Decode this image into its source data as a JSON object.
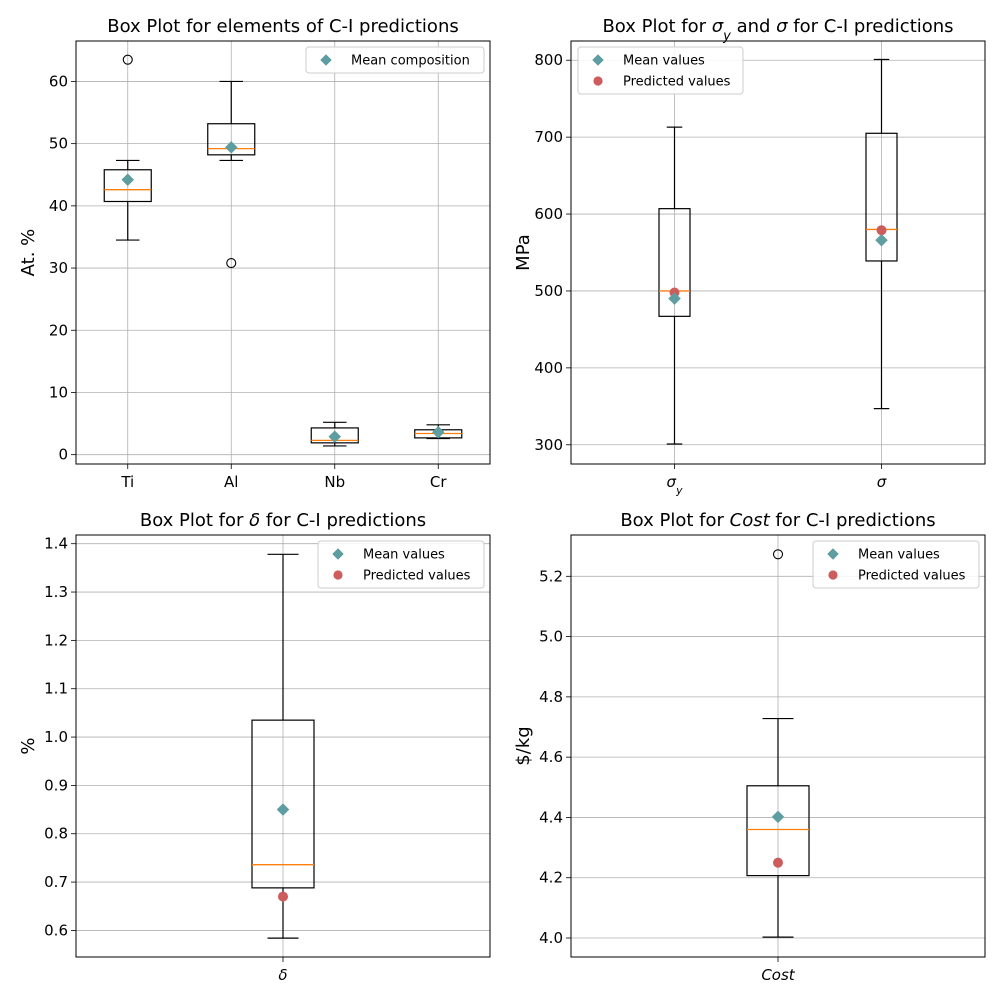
{
  "figure": {
    "background": "#ffffff"
  },
  "colors": {
    "mean_marker": "#5F9EA0",
    "predicted_marker": "#CD5C5C",
    "median_line": "#FF7F0E",
    "box_edge": "#000000",
    "grid": "#b0b0b0"
  },
  "chart_data": [
    {
      "id": "composition",
      "type": "box",
      "title": "Box Plot for elements of C-I predictions",
      "title_parts": [
        {
          "text": "Box Plot for elements of C-I predictions"
        }
      ],
      "ylabel": "At. %",
      "ylim": [
        -1.5,
        66.5
      ],
      "yticks": [
        0,
        10,
        20,
        30,
        40,
        50,
        60
      ],
      "ytick_labels": [
        "0",
        "10",
        "20",
        "30",
        "40",
        "50",
        "60"
      ],
      "grid": true,
      "categories": [
        "Ti",
        "Al",
        "Nb",
        "Cr"
      ],
      "boxes": [
        {
          "label": "Ti",
          "whisker_low": 34.5,
          "q1": 40.7,
          "median": 42.6,
          "q3": 45.8,
          "whisker_high": 47.3,
          "outliers": [
            63.5
          ],
          "mean": 44.2
        },
        {
          "label": "Al",
          "whisker_low": 47.3,
          "q1": 48.2,
          "median": 49.2,
          "q3": 53.2,
          "whisker_high": 60.0,
          "outliers": [
            30.8
          ],
          "mean": 49.4
        },
        {
          "label": "Nb",
          "whisker_low": 1.4,
          "q1": 1.9,
          "median": 2.3,
          "q3": 4.3,
          "whisker_high": 5.2,
          "outliers": [],
          "mean": 2.9
        },
        {
          "label": "Cr",
          "whisker_low": 2.6,
          "q1": 2.7,
          "median": 3.4,
          "q3": 4.0,
          "whisker_high": 4.8,
          "outliers": [],
          "mean": 3.6
        }
      ],
      "legend": {
        "placement": "upper right",
        "entries": [
          {
            "label": "Mean composition",
            "marker": "diamond",
            "color": "#5F9EA0"
          }
        ]
      }
    },
    {
      "id": "strength",
      "type": "box",
      "title": "Box Plot for σy and σ for C-I predictions",
      "title_parts": [
        {
          "text": "Box Plot for "
        },
        {
          "text": "σ",
          "italic": true
        },
        {
          "text": "y",
          "italic": true,
          "sub": true
        },
        {
          "text": " and "
        },
        {
          "text": "σ",
          "italic": true
        },
        {
          "text": " for C-I predictions"
        }
      ],
      "ylabel": "MPa",
      "ylim": [
        275,
        825
      ],
      "yticks": [
        300,
        400,
        500,
        600,
        700,
        800
      ],
      "ytick_labels": [
        "300",
        "400",
        "500",
        "600",
        "700",
        "800"
      ],
      "grid": true,
      "categories": [
        "σy",
        "σ"
      ],
      "category_parts": [
        [
          {
            "text": "σ",
            "italic": true
          },
          {
            "text": "y",
            "italic": true,
            "sub": true
          }
        ],
        [
          {
            "text": "σ",
            "italic": true
          }
        ]
      ],
      "boxes": [
        {
          "label": "σy",
          "whisker_low": 301,
          "q1": 467,
          "median": 500,
          "q3": 607,
          "whisker_high": 713,
          "outliers": [],
          "mean": 490,
          "predicted": 498
        },
        {
          "label": "σ",
          "whisker_low": 347,
          "q1": 539,
          "median": 580,
          "q3": 705,
          "whisker_high": 801,
          "outliers": [],
          "mean": 566,
          "predicted": 579
        }
      ],
      "legend": {
        "placement": "upper left",
        "entries": [
          {
            "label": "Mean values",
            "marker": "diamond",
            "color": "#5F9EA0"
          },
          {
            "label": "Predicted values",
            "marker": "circle",
            "color": "#CD5C5C"
          }
        ]
      }
    },
    {
      "id": "elongation",
      "type": "box",
      "title": "Box Plot for δ for C-I predictions",
      "title_parts": [
        {
          "text": "Box Plot for "
        },
        {
          "text": "δ",
          "italic": true
        },
        {
          "text": " for C-I predictions"
        }
      ],
      "ylabel": "%",
      "ylim": [
        0.545,
        1.418
      ],
      "yticks": [
        0.6,
        0.7,
        0.8,
        0.9,
        1.0,
        1.1,
        1.2,
        1.3,
        1.4
      ],
      "ytick_labels": [
        "0.6",
        "0.7",
        "0.8",
        "0.9",
        "1.0",
        "1.1",
        "1.2",
        "1.3",
        "1.4"
      ],
      "grid": true,
      "categories": [
        "δ"
      ],
      "category_parts": [
        [
          {
            "text": "δ",
            "italic": true
          }
        ]
      ],
      "boxes": [
        {
          "label": "δ",
          "whisker_low": 0.584,
          "q1": 0.688,
          "median": 0.736,
          "q3": 1.035,
          "whisker_high": 1.378,
          "outliers": [],
          "mean": 0.85,
          "predicted": 0.67
        }
      ],
      "legend": {
        "placement": "upper right",
        "entries": [
          {
            "label": "Mean values",
            "marker": "diamond",
            "color": "#5F9EA0"
          },
          {
            "label": "Predicted values",
            "marker": "circle",
            "color": "#CD5C5C"
          }
        ]
      }
    },
    {
      "id": "cost",
      "type": "box",
      "title": "Box Plot for Cost for C-I predictions",
      "title_parts": [
        {
          "text": "Box Plot for "
        },
        {
          "text": "Cost",
          "italic": true
        },
        {
          "text": " for C-I predictions"
        }
      ],
      "ylabel": "$/kg",
      "ylim": [
        3.937,
        5.337
      ],
      "yticks": [
        4.0,
        4.2,
        4.4,
        4.6,
        4.8,
        5.0,
        5.2
      ],
      "ytick_labels": [
        "4.0",
        "4.2",
        "4.4",
        "4.6",
        "4.8",
        "5.0",
        "5.2"
      ],
      "grid": true,
      "categories": [
        "Cost"
      ],
      "category_parts": [
        [
          {
            "text": "Cost",
            "italic": true
          }
        ]
      ],
      "boxes": [
        {
          "label": "Cost",
          "whisker_low": 4.003,
          "q1": 4.207,
          "median": 4.36,
          "q3": 4.505,
          "whisker_high": 4.728,
          "outliers": [
            5.273
          ],
          "mean": 4.402,
          "predicted": 4.25
        }
      ],
      "legend": {
        "placement": "upper right",
        "entries": [
          {
            "label": "Mean values",
            "marker": "diamond",
            "color": "#5F9EA0"
          },
          {
            "label": "Predicted values",
            "marker": "circle",
            "color": "#CD5C5C"
          }
        ]
      }
    }
  ]
}
